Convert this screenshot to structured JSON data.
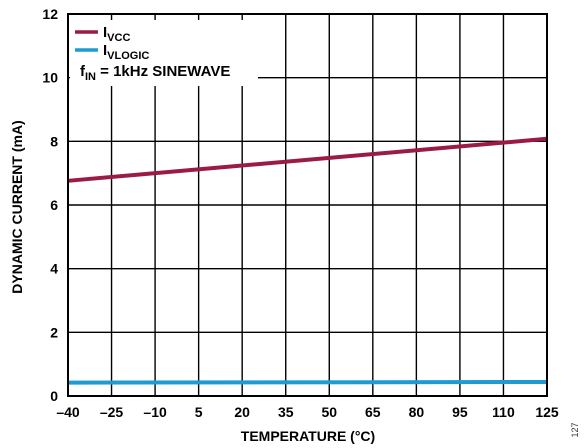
{
  "chart_data": {
    "type": "line",
    "title": "",
    "xlabel": "TEMPERATURE (°C)",
    "ylabel": "DYNAMIC CURRENT (mA)",
    "xlim": [
      -40,
      125
    ],
    "ylim": [
      0,
      12
    ],
    "x_ticks": [
      "–40",
      "–25",
      "–10",
      "5",
      "20",
      "35",
      "50",
      "65",
      "80",
      "95",
      "110",
      "125"
    ],
    "x_tick_values": [
      -40,
      -25,
      -10,
      5,
      20,
      35,
      50,
      65,
      80,
      95,
      110,
      125
    ],
    "y_ticks": [
      "0",
      "2",
      "4",
      "6",
      "8",
      "10",
      "12"
    ],
    "y_tick_values": [
      0,
      2,
      4,
      6,
      8,
      10,
      12
    ],
    "grid": true,
    "legend_position": "top-left",
    "series": [
      {
        "name_main": "I",
        "name_sub": "VCC",
        "color": "#9b1b46",
        "x": [
          -40,
          125
        ],
        "y": [
          6.76,
          8.08
        ]
      },
      {
        "name_main": "I",
        "name_sub": "VLOGIC",
        "color": "#1f9bd1",
        "x": [
          -40,
          125
        ],
        "y": [
          0.42,
          0.44
        ]
      }
    ],
    "annotation": {
      "main": "f",
      "sub": "IN",
      "rest": " = 1kHz SINEWAVE"
    },
    "figure_id": "127"
  }
}
